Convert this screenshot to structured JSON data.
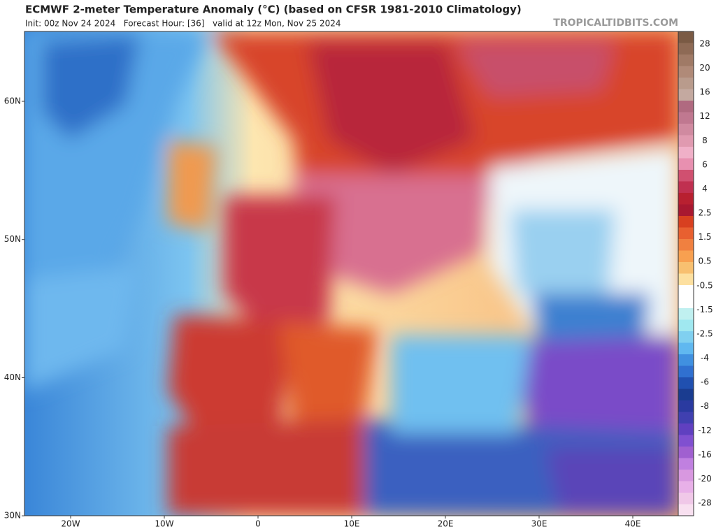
{
  "title": "ECMWF 2-meter Temperature Anomaly (°C) (based on CFSR 1981-2010 Climatology)",
  "subtitle": "Init: 00z Nov 24 2024   Forecast Hour: [36]   valid at 12z Mon, Nov 25 2024",
  "credit": "TROPICALTIDBITS.COM",
  "map": {
    "lat_labels": [
      "60N",
      "50N",
      "40N",
      "30N"
    ],
    "lon_labels": [
      "20W",
      "10W",
      "0",
      "10E",
      "20E",
      "30E",
      "40E"
    ]
  },
  "colorbar": {
    "labels": [
      28,
      20,
      16,
      12,
      8,
      6,
      4,
      2.5,
      1.5,
      0.5,
      -0.5,
      -1.5,
      -2.5,
      -4,
      -6,
      -8,
      -12,
      -16,
      -20,
      -28
    ],
    "colors": [
      "#7a5a44",
      "#8e6a55",
      "#a07a66",
      "#b08a78",
      "#b99b8c",
      "#c4a9a0",
      "#b06a80",
      "#c07890",
      "#d08aa0",
      "#e09ab0",
      "#f0b0c8",
      "#e890b0",
      "#d05070",
      "#c03050",
      "#b82030",
      "#a81830",
      "#d84020",
      "#e86030",
      "#f08040",
      "#f8a050",
      "#f8c070",
      "#fde0a0",
      "#ffffff",
      "#ffffff",
      "#c0f0f0",
      "#a0e8f0",
      "#80d0f0",
      "#60b8f0",
      "#4090e0",
      "#3070d0",
      "#2050b0",
      "#1a3c90",
      "#2a3aa0",
      "#4040b0",
      "#6040c0",
      "#8050d0",
      "#a060d0",
      "#c080e0",
      "#d898e0",
      "#e8b0e8",
      "#f0c8e8",
      "#f8e0f0"
    ]
  }
}
